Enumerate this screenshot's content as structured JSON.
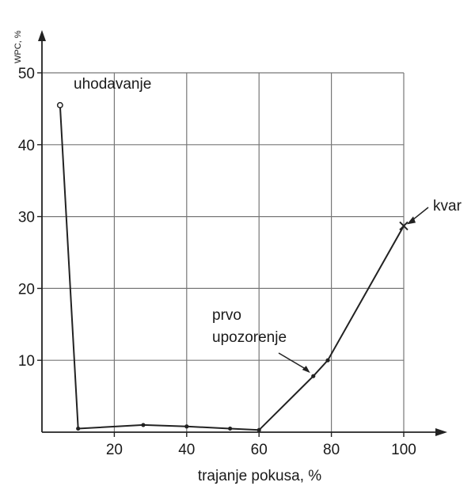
{
  "chart_data": {
    "type": "line",
    "title": "",
    "xlabel": "trajanje pokusa, %",
    "ylabel": "WPC, %",
    "xlim": [
      0,
      100
    ],
    "ylim": [
      0,
      50
    ],
    "x_ticks": [
      20,
      40,
      60,
      80,
      100
    ],
    "y_ticks": [
      10,
      20,
      30,
      40,
      50
    ],
    "grid": true,
    "series": [
      {
        "x": [
          5,
          10,
          28,
          40,
          52,
          60,
          75,
          79,
          100
        ],
        "y": [
          45.5,
          0.5,
          1.0,
          0.8,
          0.5,
          0.3,
          7.8,
          10.0,
          28.7
        ]
      }
    ],
    "annotations": [
      {
        "text": "uhodavanje",
        "x": 5,
        "y": 45.5
      },
      {
        "text": "prvo",
        "x": 75,
        "y": 7.8
      },
      {
        "text": "upozorenje",
        "x": 75,
        "y": 7.8
      },
      {
        "text": "kvar",
        "x": 100,
        "y": 28.7
      }
    ]
  }
}
